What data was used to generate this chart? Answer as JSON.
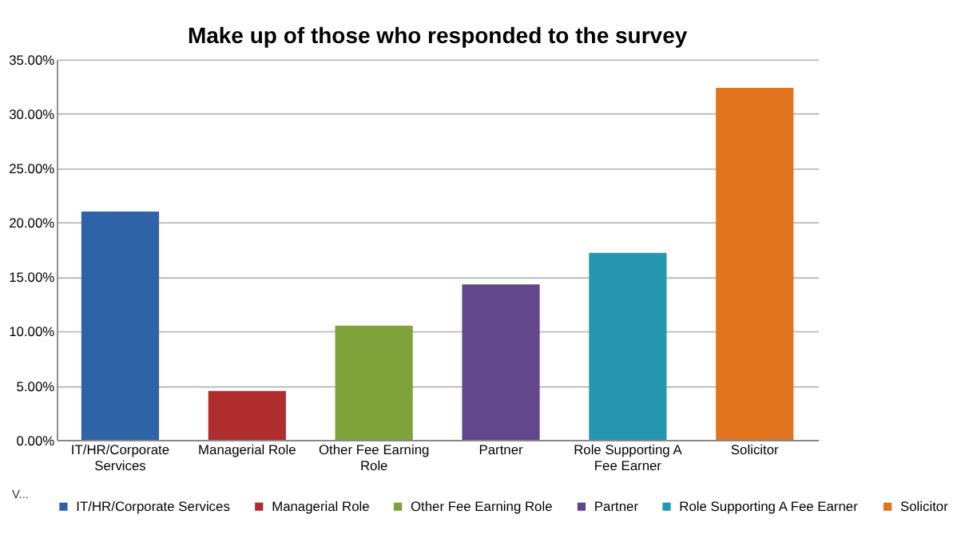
{
  "chart_data": {
    "type": "bar",
    "title": "Make up of those who responded to the survey",
    "categories": [
      "IT/HR/Corporate Services",
      "Managerial Role",
      "Other Fee Earning Role",
      "Partner",
      "Role Supporting A Fee Earner",
      "Solicitor"
    ],
    "series": [
      {
        "name": "IT/HR/Corporate Services",
        "color": "#2e63a8",
        "values": [
          21.0,
          null,
          null,
          null,
          null,
          null
        ]
      },
      {
        "name": "Managerial Role",
        "color": "#b02e2e",
        "values": [
          null,
          4.5,
          null,
          null,
          null,
          null
        ]
      },
      {
        "name": "Other Fee Earning Role",
        "color": "#7ea33a",
        "values": [
          null,
          null,
          10.5,
          null,
          null,
          null
        ]
      },
      {
        "name": "Partner",
        "color": "#62478c",
        "values": [
          null,
          null,
          null,
          14.3,
          null,
          null
        ]
      },
      {
        "name": "Role Supporting A Fee Earner",
        "color": "#2697b0",
        "values": [
          null,
          null,
          null,
          null,
          17.2,
          null
        ]
      },
      {
        "name": "Solicitor",
        "color": "#e0741f",
        "values": [
          null,
          null,
          null,
          null,
          null,
          32.4
        ]
      }
    ],
    "ylim": [
      0,
      35
    ],
    "yticks": [
      {
        "value": 0,
        "label": "0.00%"
      },
      {
        "value": 5,
        "label": "5.00%"
      },
      {
        "value": 10,
        "label": "10.00%"
      },
      {
        "value": 15,
        "label": "15.00%"
      },
      {
        "value": 20,
        "label": "20.00%"
      },
      {
        "value": 25,
        "label": "25.00%"
      },
      {
        "value": 30,
        "label": "30.00%"
      },
      {
        "value": 35,
        "label": "35.00%"
      }
    ],
    "grid": "y",
    "legend": "bottom",
    "annotations": [
      "V..."
    ]
  }
}
